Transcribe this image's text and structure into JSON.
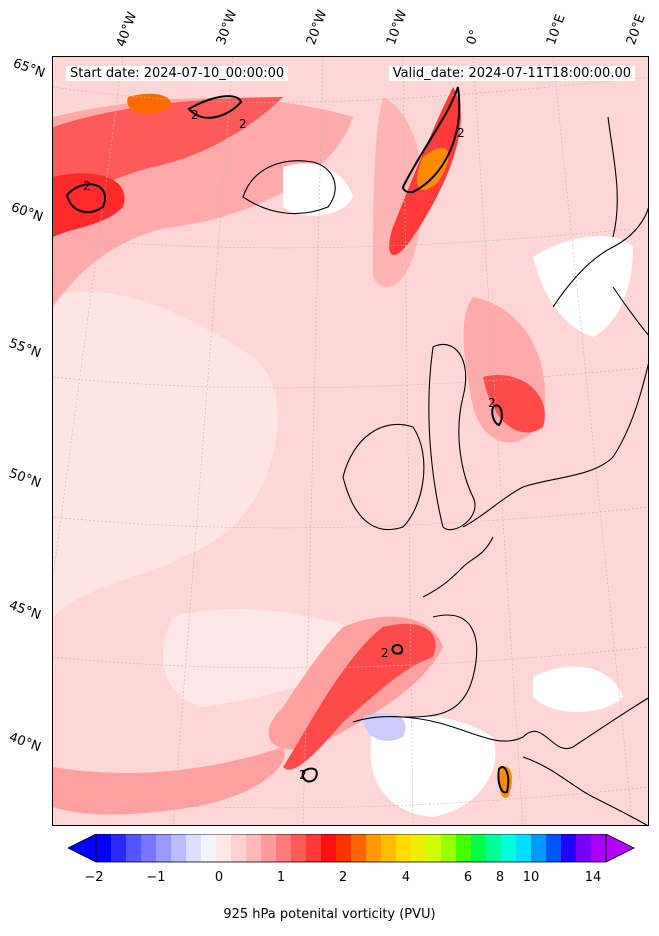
{
  "map": {
    "start_date": "Start date: 2024-07-10_00:00:00",
    "valid_date": "Valid_date: 2024-07-11T18:00:00.00",
    "lat_labels": [
      "65°N",
      "60°N",
      "55°N",
      "50°N",
      "45°N",
      "40°N"
    ],
    "lon_labels": [
      "40°W",
      "30°W",
      "20°W",
      "10°W",
      "0°",
      "10°E",
      "20°E"
    ],
    "contour_label": "2",
    "colors": {
      "background": "#ffd6d6",
      "light": "#ffe9e9",
      "medium": "#ffaaaa",
      "strong": "#ff5a5a",
      "deep": "#ff2020",
      "peak": "#ff8c00",
      "yellow": "#e6e600",
      "blue": "#c8c8ff"
    }
  },
  "colorbar": {
    "label": "925 hPa potenital vorticity (PVU)",
    "tick_labels": [
      "−2",
      "−1",
      "0",
      "1",
      "2",
      "4",
      "6",
      "8",
      "10",
      "14"
    ],
    "colors": [
      "#0000ff",
      "#2a2aff",
      "#5555ff",
      "#7777ff",
      "#9999ff",
      "#bbbbff",
      "#ddddff",
      "#f4f4ff",
      "#ffe8e8",
      "#ffd0d0",
      "#ffb8b8",
      "#ff9a9a",
      "#ff7a7a",
      "#ff5a5a",
      "#ff3a3a",
      "#ff1010",
      "#ff3300",
      "#ff6600",
      "#ff9900",
      "#ffbb00",
      "#ffdd00",
      "#eeee00",
      "#ccff00",
      "#99ff00",
      "#44ff00",
      "#00ff44",
      "#00ff99",
      "#00ffdd",
      "#00ddff",
      "#0099ff",
      "#0055ff",
      "#2200ff",
      "#7700ff",
      "#aa00ff"
    ],
    "left_arrow_color": "#0000ff",
    "right_arrow_color": "#b400ff"
  }
}
